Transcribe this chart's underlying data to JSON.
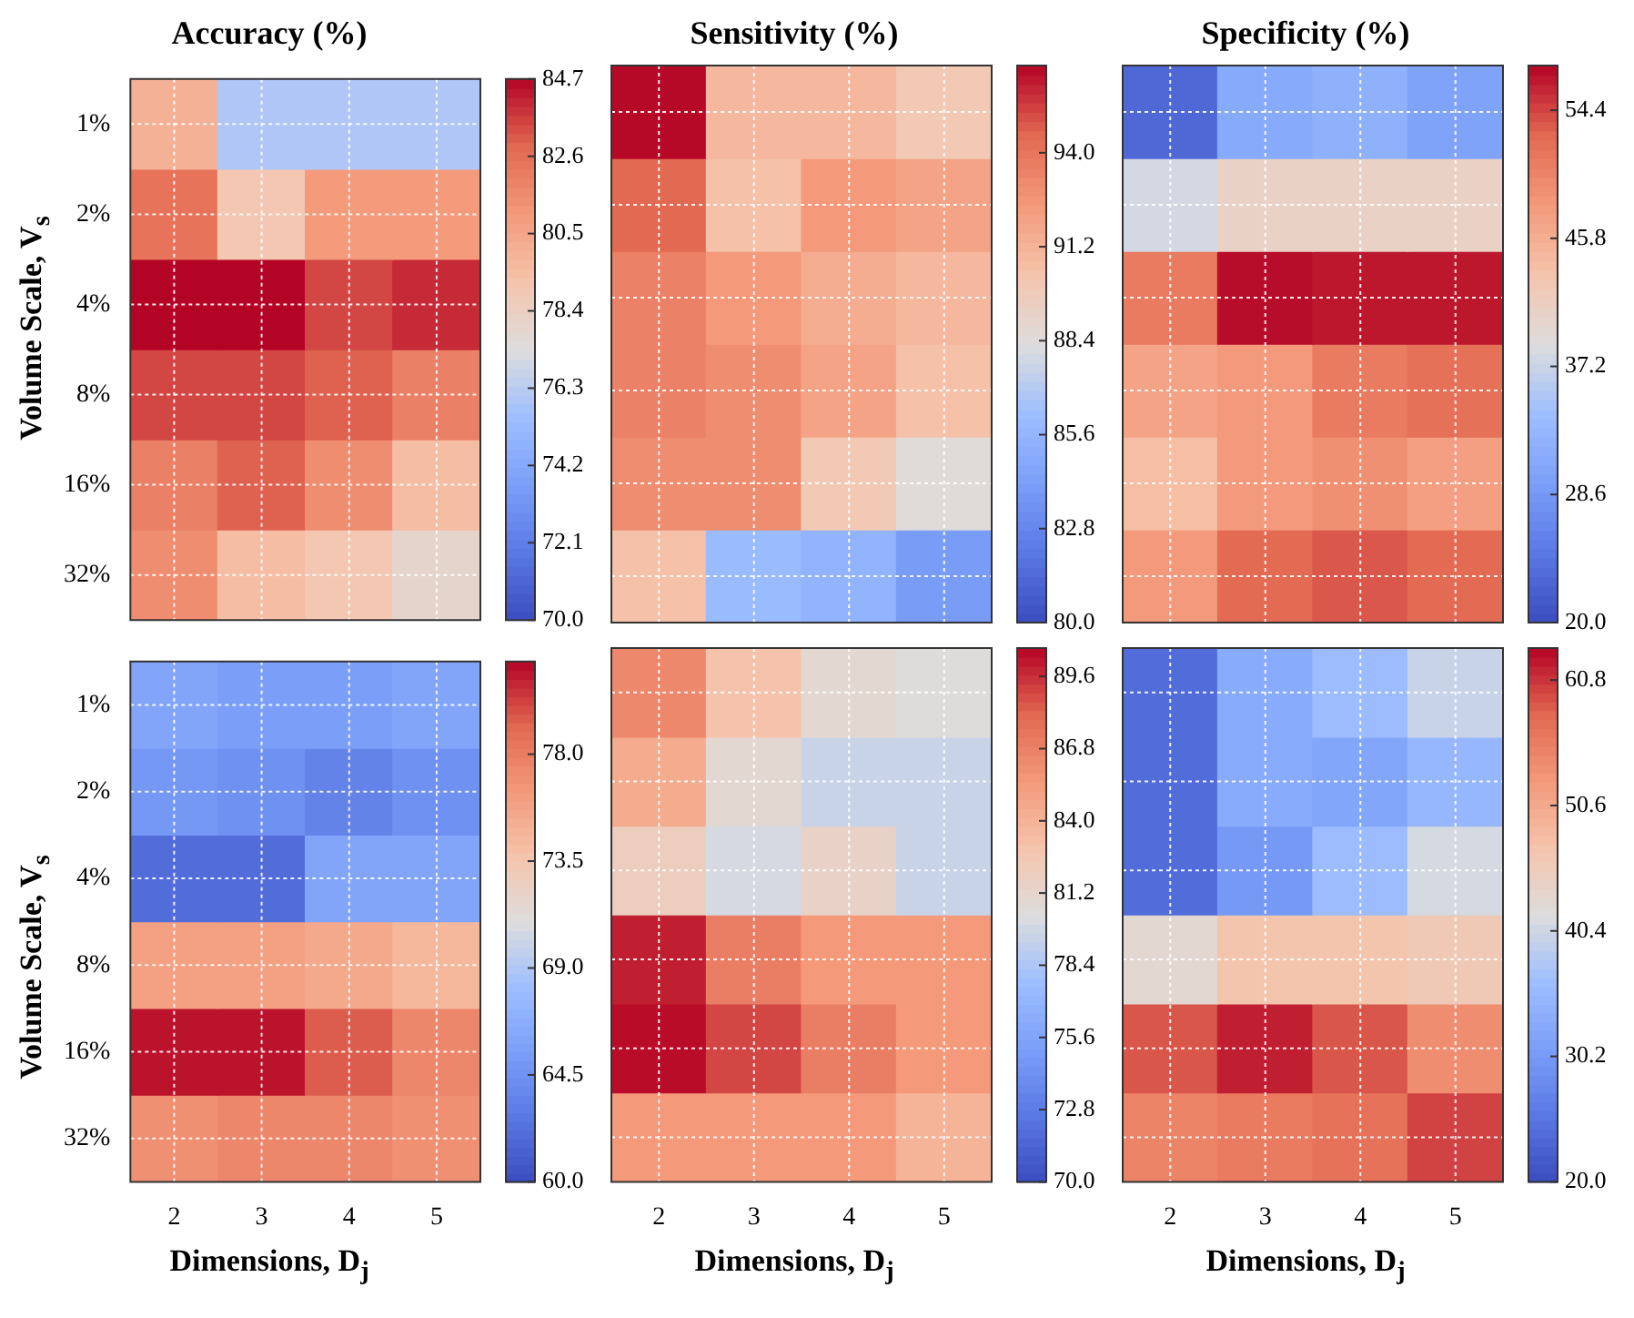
{
  "chart_data": [
    {
      "type": "heatmap",
      "title": "Accuracy (%)",
      "ylabel": "Volume Scale, V$_{s}$",
      "categories": [
        "2",
        "3",
        "4",
        "5"
      ],
      "y_categories": [
        "1%",
        "2%",
        "4%",
        "8%",
        "16%",
        "32%"
      ],
      "tick_labels": "y",
      "grid": true,
      "cells": [
        [
          80,
          76,
          76,
          76
        ],
        [
          82.5,
          79,
          81,
          81
        ],
        [
          84.7,
          84.7,
          83.5,
          84
        ],
        [
          83.5,
          83.5,
          83,
          82
        ],
        [
          82,
          83,
          81.5,
          79.5
        ],
        [
          81.5,
          79.5,
          79,
          78
        ]
      ],
      "clim": [
        70,
        84.7
      ],
      "cticks": [
        {
          "value": 70,
          "label": "70.0"
        },
        {
          "value": 72.1,
          "label": "72.1"
        },
        {
          "value": 74.2,
          "label": "74.2"
        },
        {
          "value": 76.3,
          "label": "76.3"
        },
        {
          "value": 78.4,
          "label": "78.4"
        },
        {
          "value": 80.5,
          "label": "80.5"
        },
        {
          "value": 82.6,
          "label": "82.6"
        },
        {
          "value": 84.7,
          "label": "84.7"
        }
      ]
    },
    {
      "type": "heatmap",
      "title": "Sensitivity (%)",
      "categories": [
        "2",
        "3",
        "4",
        "5"
      ],
      "y_categories": [
        null,
        null,
        null,
        null,
        null,
        null
      ],
      "tick_labels": false,
      "grid": true,
      "cells": [
        [
          96.5,
          91,
          91,
          90
        ],
        [
          94.5,
          90.5,
          92.5,
          92
        ],
        [
          93.5,
          92.5,
          91.5,
          91
        ],
        [
          93.5,
          93,
          92,
          90.5
        ],
        [
          93,
          93,
          90,
          88.5
        ],
        [
          90.5,
          86,
          85.5,
          84
        ]
      ],
      "clim": [
        80,
        96.6
      ],
      "cticks": [
        {
          "value": 80,
          "label": "80.0"
        },
        {
          "value": 82.8,
          "label": "82.8"
        },
        {
          "value": 85.6,
          "label": "85.6"
        },
        {
          "value": 88.4,
          "label": "88.4"
        },
        {
          "value": 91.2,
          "label": "91.2"
        },
        {
          "value": 94,
          "label": "94.0"
        }
      ]
    },
    {
      "type": "heatmap",
      "title": "Specificity (%)",
      "categories": [
        "2",
        "3",
        "4",
        "5"
      ],
      "y_categories": [
        null,
        null,
        null,
        null,
        null,
        null
      ],
      "tick_labels": false,
      "grid": true,
      "cells": [
        [
          23,
          31,
          32,
          30
        ],
        [
          38,
          41,
          41,
          41
        ],
        [
          51,
          57,
          56.5,
          56.5
        ],
        [
          47,
          48,
          51,
          52
        ],
        [
          44,
          48,
          49,
          47.5
        ],
        [
          48,
          52.5,
          53.5,
          52.5
        ]
      ],
      "clim": [
        20,
        57.4
      ],
      "cticks": [
        {
          "value": 20,
          "label": "20.0"
        },
        {
          "value": 28.6,
          "label": "28.6"
        },
        {
          "value": 37.2,
          "label": "37.2"
        },
        {
          "value": 45.8,
          "label": "45.8"
        },
        {
          "value": 54.4,
          "label": "54.4"
        }
      ]
    },
    {
      "type": "heatmap",
      "xlabel": "Dimensions, D$_{j}$",
      "ylabel": "Volume Scale, V$_{s}$",
      "categories": [
        "2",
        "3",
        "4",
        "5"
      ],
      "y_categories": [
        "1%",
        "2%",
        "4%",
        "8%",
        "16%",
        "32%"
      ],
      "grid": true,
      "cells": [
        [
          66,
          65.5,
          65.5,
          66
        ],
        [
          65,
          64.5,
          63.5,
          64.5
        ],
        [
          62,
          62,
          66,
          66
        ],
        [
          76,
          76,
          75.5,
          74.5
        ],
        [
          81.5,
          81.5,
          79.5,
          77.5
        ],
        [
          77,
          77.5,
          77.5,
          77
        ]
      ],
      "clim": [
        60,
        81.9
      ],
      "cticks": [
        {
          "value": 60,
          "label": "60.0"
        },
        {
          "value": 64.5,
          "label": "64.5"
        },
        {
          "value": 69,
          "label": "69.0"
        },
        {
          "value": 73.5,
          "label": "73.5"
        },
        {
          "value": 78,
          "label": "78.0"
        }
      ]
    },
    {
      "type": "heatmap",
      "xlabel": "Dimensions, D$_{j}$",
      "categories": [
        "2",
        "3",
        "4",
        "5"
      ],
      "y_categories": [
        null,
        null,
        null,
        null,
        null,
        null
      ],
      "tick_labels": "x",
      "grid": true,
      "cells": [
        [
          86.5,
          83,
          81,
          80.5
        ],
        [
          84.5,
          81,
          79.5,
          79.5
        ],
        [
          82,
          80,
          81.5,
          79.5
        ],
        [
          90,
          87,
          85.5,
          85.5
        ],
        [
          90.5,
          89,
          87,
          85.5
        ],
        [
          85.5,
          85.5,
          85.5,
          84
        ]
      ],
      "clim": [
        70,
        90.7
      ],
      "cticks": [
        {
          "value": 70,
          "label": "70.0"
        },
        {
          "value": 72.8,
          "label": "72.8"
        },
        {
          "value": 75.6,
          "label": "75.6"
        },
        {
          "value": 78.4,
          "label": "78.4"
        },
        {
          "value": 81.2,
          "label": "81.2"
        },
        {
          "value": 84,
          "label": "84.0"
        },
        {
          "value": 86.8,
          "label": "86.8"
        },
        {
          "value": 89.6,
          "label": "89.6"
        }
      ]
    },
    {
      "type": "heatmap",
      "xlabel": "Dimensions, D$_{j}$",
      "categories": [
        "2",
        "3",
        "4",
        "5"
      ],
      "y_categories": [
        null,
        null,
        null,
        null,
        null,
        null
      ],
      "tick_labels": "x",
      "grid": true,
      "cells": [
        [
          24,
          33,
          36,
          40
        ],
        [
          24,
          33,
          32,
          35
        ],
        [
          24,
          30,
          36,
          41
        ],
        [
          43,
          47,
          47,
          46
        ],
        [
          59,
          62,
          59,
          54
        ],
        [
          55,
          56,
          57,
          60
        ]
      ],
      "clim": [
        20,
        63.4
      ],
      "cticks": [
        {
          "value": 20,
          "label": "20.0"
        },
        {
          "value": 30.2,
          "label": "30.2"
        },
        {
          "value": 40.4,
          "label": "40.4"
        },
        {
          "value": 50.6,
          "label": "50.6"
        },
        {
          "value": 60.8,
          "label": "60.8"
        }
      ]
    }
  ]
}
